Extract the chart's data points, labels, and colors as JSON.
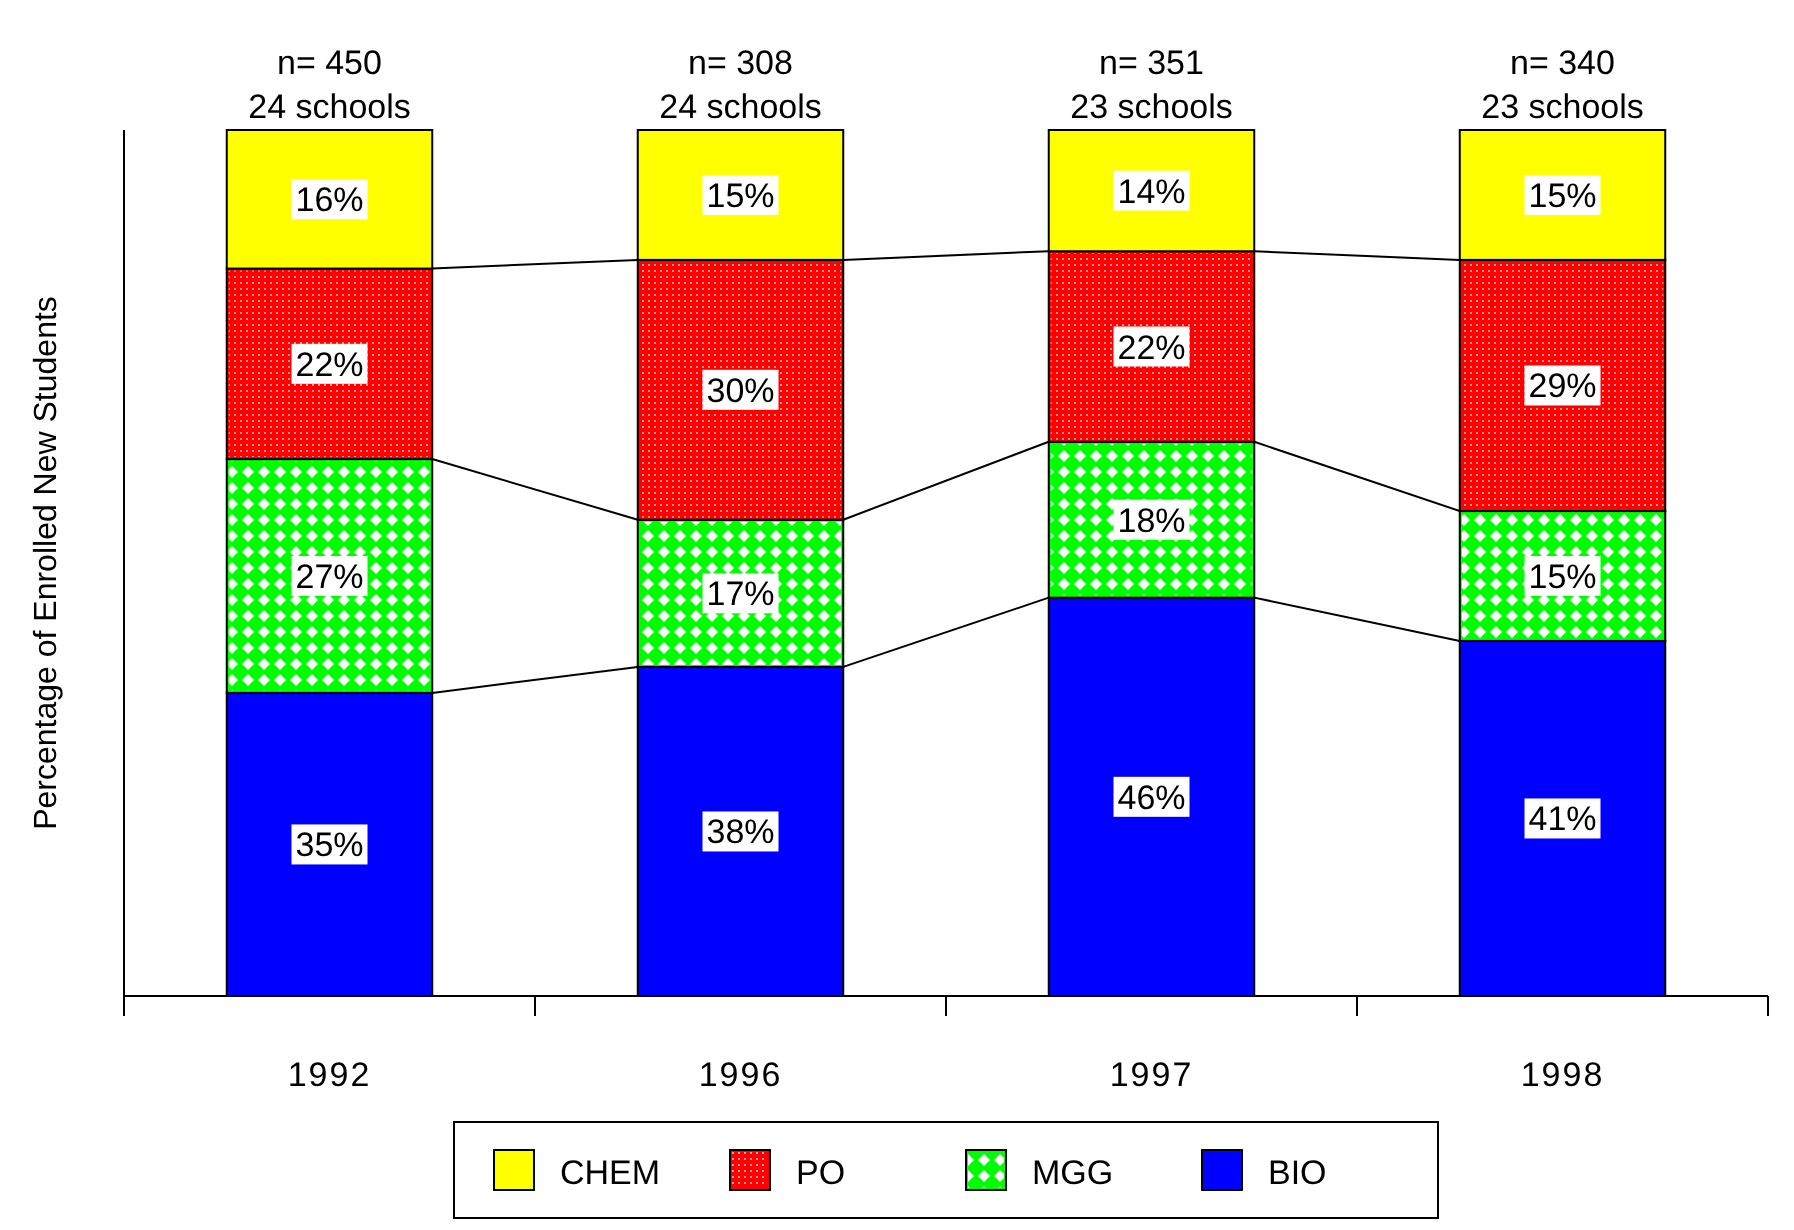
{
  "chart_data": {
    "type": "bar",
    "stacked": true,
    "ylabel": "Percentage of Enrolled New Students",
    "categories": [
      "1992",
      "1996",
      "1997",
      "1998"
    ],
    "ylim": [
      0,
      100
    ],
    "tick_labels": "x",
    "legend": "bottom",
    "series": [
      {
        "name": "BIO",
        "color": "#0000ff",
        "values": [
          35,
          38,
          46,
          41
        ],
        "value_labels": [
          "35%",
          "38%",
          "46%",
          "41%"
        ]
      },
      {
        "name": "MGG",
        "color": "#00ff00",
        "values": [
          27,
          17,
          18,
          15
        ],
        "value_labels": [
          "27%",
          "17%",
          "18%",
          "15%"
        ]
      },
      {
        "name": "PO",
        "color": "#ff0000",
        "values": [
          22,
          30,
          22,
          29
        ],
        "value_labels": [
          "22%",
          "30%",
          "22%",
          "29%"
        ]
      },
      {
        "name": "CHEM",
        "color": "#ffff00",
        "values": [
          16,
          15,
          14,
          15
        ],
        "value_labels": [
          "16%",
          "15%",
          "14%",
          "15%"
        ]
      }
    ],
    "annotations": [
      {
        "text": "n= 450\n24 schools",
        "x": "1992",
        "y": 100
      },
      {
        "text": "n= 308\n24 schools",
        "x": "1996",
        "y": 100
      },
      {
        "text": "n= 351\n23 schools",
        "x": "1997",
        "y": 100
      },
      {
        "text": "n= 340\n23 schools",
        "x": "1998",
        "y": 100
      }
    ]
  }
}
